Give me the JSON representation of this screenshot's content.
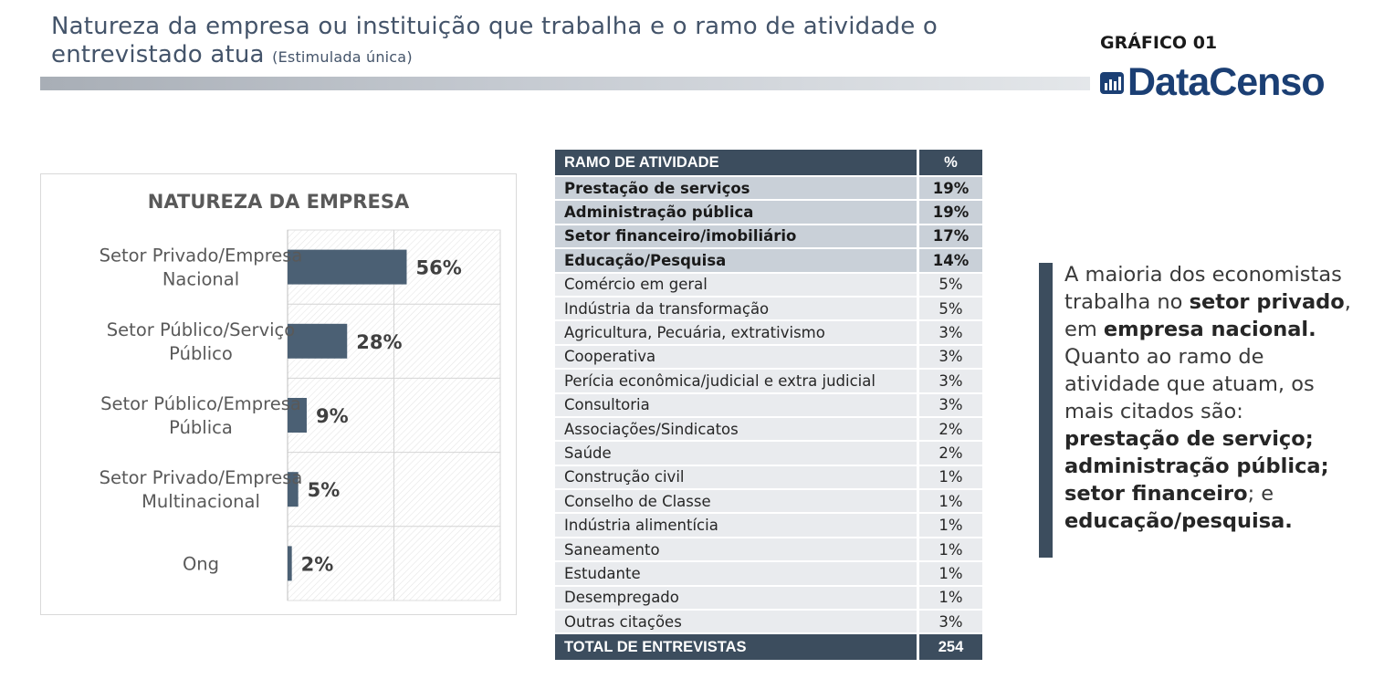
{
  "header": {
    "title_line1": "Natureza da empresa ou instituição que trabalha e o ramo de atividade o",
    "title_line2": "entrevistado atua",
    "title_note": "(Estimulada única)",
    "grafico_label": "GRÁFICO 01",
    "logo_text": "DataCenso",
    "logo_color": "#1b3f74"
  },
  "chart_data": {
    "type": "bar",
    "orientation": "horizontal",
    "title": "NATUREZA DA EMPRESA",
    "categories": [
      [
        "Setor Privado/Empresa",
        "Nacional"
      ],
      [
        "Setor Público/Serviço",
        "Público"
      ],
      [
        "Setor Público/Empresa",
        "Pública"
      ],
      [
        "Setor Privado/Empresa",
        "Multinacional"
      ],
      [
        "Ong"
      ]
    ],
    "values": [
      56,
      28,
      9,
      5,
      2
    ],
    "value_labels": [
      "56%",
      "28%",
      "9%",
      "5%",
      "2%"
    ],
    "xlim": [
      0,
      100
    ],
    "bar_color": "#4b6074",
    "grid": true
  },
  "table": {
    "headers": [
      "RAMO DE ATIVIDADE",
      "%"
    ],
    "rows": [
      {
        "label": "Prestação de serviços",
        "value": "19%",
        "highlight": true
      },
      {
        "label": "Administração pública",
        "value": "19%",
        "highlight": true
      },
      {
        "label": "Setor financeiro/imobiliário",
        "value": "17%",
        "highlight": true
      },
      {
        "label": "Educação/Pesquisa",
        "value": "14%",
        "highlight": true
      },
      {
        "label": "Comércio em geral",
        "value": "5%",
        "highlight": false
      },
      {
        "label": "Indústria da transformação",
        "value": "5%",
        "highlight": false
      },
      {
        "label": "Agricultura, Pecuária, extrativismo",
        "value": "3%",
        "highlight": false
      },
      {
        "label": "Cooperativa",
        "value": "3%",
        "highlight": false
      },
      {
        "label": "Perícia econômica/judicial e extra judicial",
        "value": "3%",
        "highlight": false
      },
      {
        "label": "Consultoria",
        "value": "3%",
        "highlight": false
      },
      {
        "label": "Associações/Sindicatos",
        "value": "2%",
        "highlight": false
      },
      {
        "label": "Saúde",
        "value": "2%",
        "highlight": false
      },
      {
        "label": "Construção civil",
        "value": "1%",
        "highlight": false
      },
      {
        "label": "Conselho de Classe",
        "value": "1%",
        "highlight": false
      },
      {
        "label": "Indústria alimentícia",
        "value": "1%",
        "highlight": false
      },
      {
        "label": "Saneamento",
        "value": "1%",
        "highlight": false
      },
      {
        "label": "Estudante",
        "value": "1%",
        "highlight": false
      },
      {
        "label": "Desempregado",
        "value": "1%",
        "highlight": false
      },
      {
        "label": "Outras citações",
        "value": "3%",
        "highlight": false
      }
    ],
    "total_label": "TOTAL DE ENTREVISTAS",
    "total_value": "254",
    "header_color": "#3c4d5e",
    "highlight_color": "#c9d0d8",
    "row_color": "#e9ebee"
  },
  "commentary": {
    "segments": [
      {
        "text": "A maioria dos economistas trabalha no ",
        "bold": false
      },
      {
        "text": "setor privado",
        "bold": true
      },
      {
        "text": ", em ",
        "bold": false
      },
      {
        "text": "empresa nacional.",
        "bold": true
      },
      {
        "text": " Quanto ao ramo de atividade que atuam, os mais citados são: ",
        "bold": false
      },
      {
        "text": "prestação de serviço; administração pública; setor financeiro",
        "bold": true
      },
      {
        "text": "; e ",
        "bold": false
      },
      {
        "text": "educação/pesquisa.",
        "bold": true
      }
    ]
  }
}
